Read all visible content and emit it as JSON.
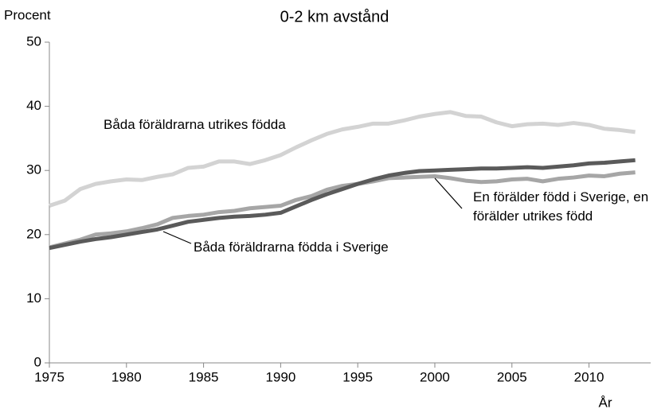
{
  "chart_data": {
    "type": "line",
    "title": "0-2 km avstånd",
    "ylabel": "Procent",
    "xlabel": "År",
    "x": [
      1975,
      1976,
      1977,
      1978,
      1979,
      1980,
      1981,
      1982,
      1983,
      1984,
      1985,
      1986,
      1987,
      1988,
      1989,
      1990,
      1991,
      1992,
      1993,
      1994,
      1995,
      1996,
      1997,
      1998,
      1999,
      2000,
      2001,
      2002,
      2003,
      2004,
      2005,
      2006,
      2007,
      2008,
      2009,
      2010,
      2011,
      2012,
      2013
    ],
    "series": [
      {
        "name": "Båda föräldrarna utrikes födda",
        "color": "#d3d3d3",
        "values": [
          24.5,
          25.3,
          27.1,
          27.9,
          28.3,
          28.6,
          28.5,
          29.0,
          29.4,
          30.4,
          30.6,
          31.4,
          31.4,
          31.0,
          31.6,
          32.4,
          33.6,
          34.7,
          35.7,
          36.4,
          36.8,
          37.3,
          37.3,
          37.8,
          38.4,
          38.8,
          39.1,
          38.5,
          38.4,
          37.5,
          36.9,
          37.2,
          37.3,
          37.1,
          37.4,
          37.1,
          36.5,
          36.3,
          36.0
        ]
      },
      {
        "name": "En förälder född i Sverige, en förälder utrikes född",
        "color": "#a6a6a6",
        "values": [
          18.0,
          18.6,
          19.2,
          20.0,
          20.2,
          20.5,
          21.0,
          21.6,
          22.6,
          22.9,
          23.1,
          23.5,
          23.7,
          24.1,
          24.3,
          24.5,
          25.4,
          26.0,
          27.0,
          27.6,
          27.9,
          28.3,
          28.8,
          28.9,
          29.0,
          29.1,
          28.8,
          28.4,
          28.2,
          28.3,
          28.6,
          28.7,
          28.3,
          28.7,
          28.9,
          29.2,
          29.1,
          29.5,
          29.7
        ]
      },
      {
        "name": "Båda föräldrarna födda i Sverige",
        "color": "#5a5a5a",
        "values": [
          17.9,
          18.4,
          18.9,
          19.3,
          19.6,
          20.0,
          20.4,
          20.8,
          21.4,
          22.0,
          22.3,
          22.6,
          22.8,
          22.9,
          23.1,
          23.4,
          24.4,
          25.4,
          26.3,
          27.1,
          27.9,
          28.6,
          29.2,
          29.6,
          29.9,
          30.0,
          30.1,
          30.2,
          30.3,
          30.3,
          30.4,
          30.5,
          30.4,
          30.6,
          30.8,
          31.1,
          31.2,
          31.4,
          31.6
        ]
      }
    ],
    "xlim": [
      1975,
      2014
    ],
    "xticks": [
      1975,
      1980,
      1985,
      1990,
      1995,
      2000,
      2005,
      2010
    ],
    "ylim": [
      0,
      50
    ],
    "yticks": [
      0,
      10,
      20,
      30,
      40,
      50
    ],
    "grid": false
  }
}
